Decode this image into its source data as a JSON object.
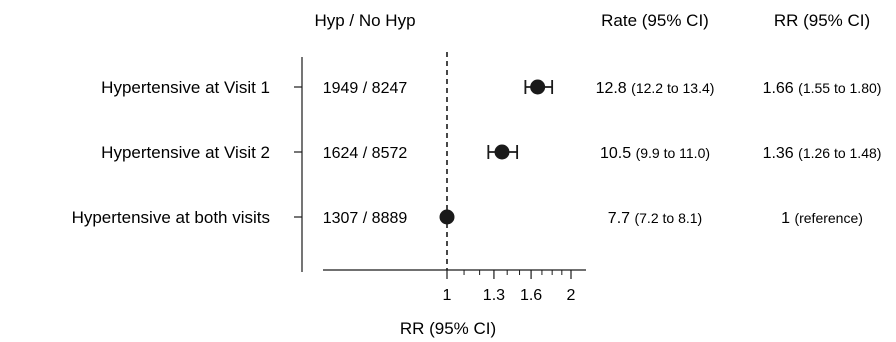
{
  "headers": {
    "counts": "Hyp / No Hyp",
    "rate": "Rate (95% CI)",
    "rr": "RR (95% CI)"
  },
  "chart_data": {
    "type": "forest",
    "xlabel": "RR (95% CI)",
    "xscale": "log",
    "xlim": [
      0.63,
      2.15
    ],
    "reference_line": 1,
    "ticks": [
      {
        "value": 1,
        "label": "1"
      },
      {
        "value": 1.3,
        "label": "1.3"
      },
      {
        "value": 1.6,
        "label": "1.6"
      },
      {
        "value": 2,
        "label": "2"
      }
    ],
    "minor_ticks": [
      1.1,
      1.2,
      1.4,
      1.5,
      1.7,
      1.8,
      1.9
    ],
    "rows": [
      {
        "label": "Hypertensive at Visit 1",
        "counts": "1949 / 8247",
        "rate": "12.8",
        "rate_ci": "(12.2 to 13.4)",
        "rr_text": "1.66",
        "rr_ci_text": "(1.55 to 1.80)",
        "rr": 1.66,
        "lo": 1.55,
        "hi": 1.8
      },
      {
        "label": "Hypertensive at Visit 2",
        "counts": "1624 / 8572",
        "rate": "10.5",
        "rate_ci": "(9.9 to 11.0)",
        "rr_text": "1.36",
        "rr_ci_text": "(1.26 to 1.48)",
        "rr": 1.36,
        "lo": 1.26,
        "hi": 1.48
      },
      {
        "label": "Hypertensive at both visits",
        "counts": "1307 / 8889",
        "rate": "7.7",
        "rate_ci": "(7.2 to 8.1)",
        "rr_text": "1",
        "rr_ci_text": "(reference)",
        "rr": 1,
        "lo": 1,
        "hi": 1
      }
    ]
  }
}
